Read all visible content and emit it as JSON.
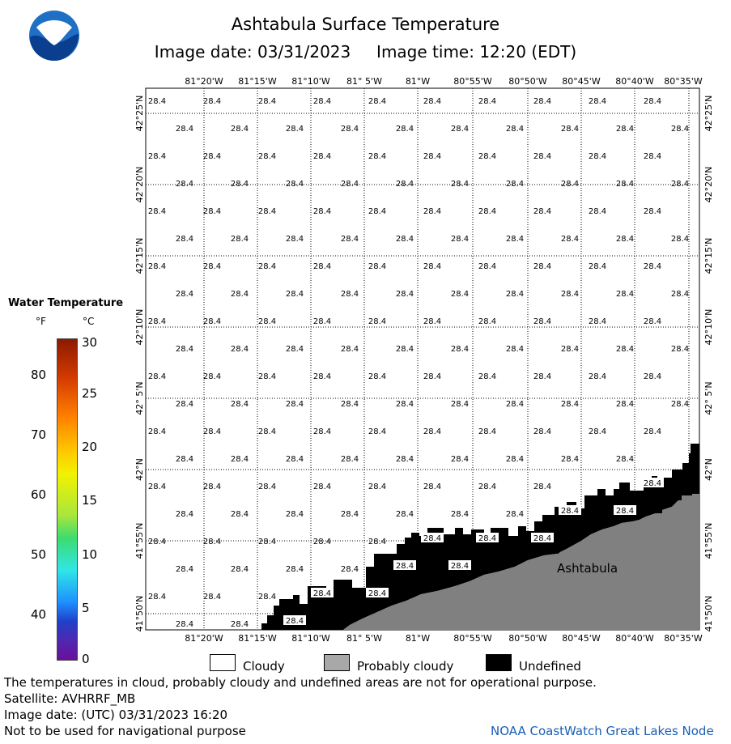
{
  "header": {
    "title": "Ashtabula Surface Temperature",
    "subtitle": "Image date: 03/31/2023     Image time: 12:20 (EDT)"
  },
  "logo": {
    "text": "NOAA",
    "icon": "noaa-logo-icon"
  },
  "map": {
    "lon_labels": [
      "81°20'W",
      "81°15'W",
      "81°10'W",
      "81° 5'W",
      "81°W",
      "80°55'W",
      "80°50'W",
      "80°45'W",
      "80°40'W",
      "80°35'W"
    ],
    "lat_labels": [
      "42°25'N",
      "42°20'N",
      "42°15'N",
      "42°10'N",
      "42° 5'N",
      "42°N",
      "41°55'N",
      "41°50'N"
    ],
    "temp_value": "28.4",
    "place_label": "Ashtabula",
    "colors": {
      "land": "#808080",
      "undefined": "#000000",
      "water": "#ffffff"
    }
  },
  "scale": {
    "title": "Water Temperature",
    "unit_f": "°F",
    "unit_c": "°C",
    "f_labels": [
      "80",
      "70",
      "60",
      "50",
      "40"
    ],
    "c_labels": [
      "30",
      "25",
      "20",
      "15",
      "10",
      "5",
      "0"
    ]
  },
  "legend": {
    "cloudy": "Cloudy",
    "probably_cloudy": "Probably cloudy",
    "undefined": "Undefined",
    "colors": {
      "cloudy": "#ffffff",
      "probably_cloudy": "#a8a8a8",
      "undefined": "#000000"
    }
  },
  "footer": {
    "line1": "The temperatures in cloud, probably cloudy and undefined areas are not for operational purpose.",
    "line2": "Satellite: AVHRRF_MB",
    "line3": "Image date: (UTC) 03/31/2023  16:20",
    "line4": "Not to be used for navigational purpose",
    "credit": "NOAA CoastWatch Great Lakes Node"
  }
}
